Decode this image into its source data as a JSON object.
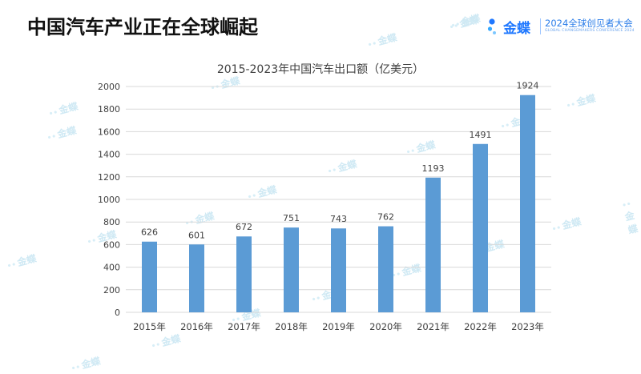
{
  "slide": {
    "title": "中国汽车产业正在全球崛起"
  },
  "logo": {
    "brand": "金蝶",
    "event": "2024全球创见者大会",
    "event_en": "GLOBAL CHANGEMAKERS CONFERENCE 2024"
  },
  "watermark": {
    "text": "金蝶"
  },
  "colors": {
    "bar": "#5b9bd5",
    "grid": "#d9d9d9",
    "text": "#404040",
    "brand": "#1f78ff"
  },
  "chart_data": {
    "type": "bar",
    "title": "2015-2023年中国汽车出口额（亿美元）",
    "categories": [
      "2015年",
      "2016年",
      "2017年",
      "2018年",
      "2019年",
      "2020年",
      "2021年",
      "2022年",
      "2023年"
    ],
    "values": [
      626,
      601,
      672,
      751,
      743,
      762,
      1193,
      1491,
      1924
    ],
    "ylim": [
      0,
      2000
    ],
    "yticks": [
      0,
      200,
      400,
      600,
      800,
      1000,
      1200,
      1400,
      1600,
      1800,
      2000
    ],
    "data_labels": true,
    "grid": true,
    "legend": "none"
  }
}
